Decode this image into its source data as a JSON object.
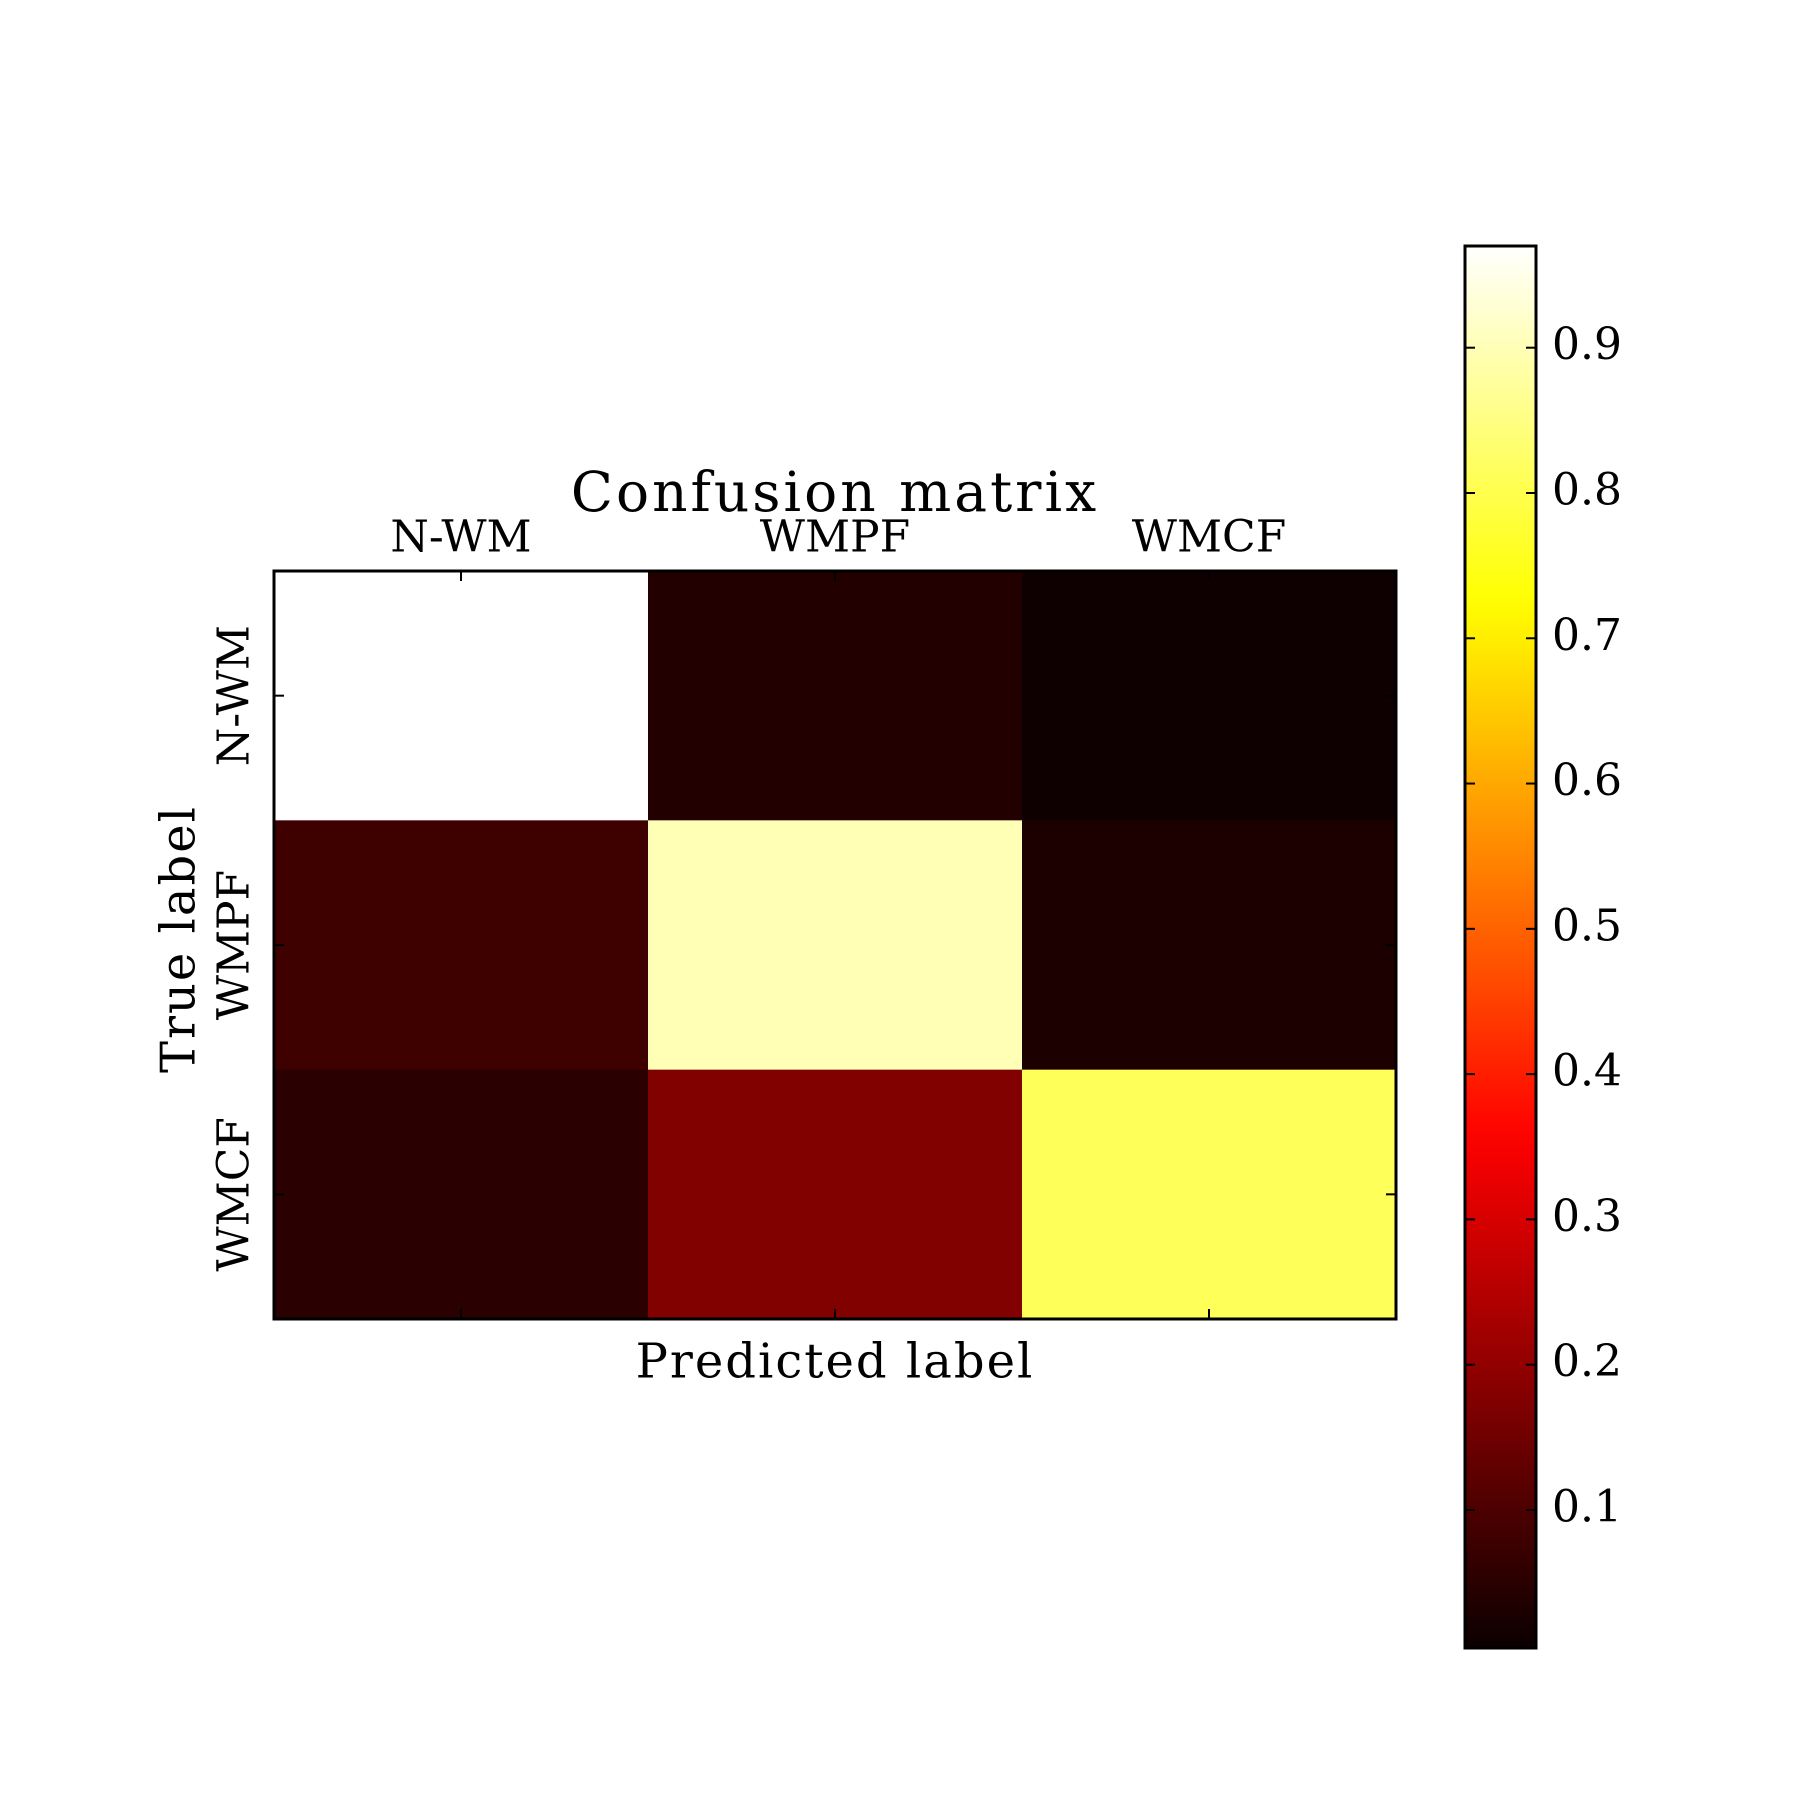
{
  "chart_data": {
    "type": "heatmap",
    "title": "Confusion matrix",
    "x_label": "Predicted label",
    "y_label": "True label",
    "x_categories": [
      "N-WM",
      "WMPF",
      "WMCF"
    ],
    "y_categories": [
      "N-WM",
      "WMPF",
      "WMCF"
    ],
    "values": [
      [
        0.97,
        0.04,
        0.01
      ],
      [
        0.08,
        0.9,
        0.03
      ],
      [
        0.05,
        0.175,
        0.81
      ]
    ],
    "colormap": "hot",
    "clim": [
      0.005,
      0.97
    ],
    "colorbar_ticks": [
      0.1,
      0.2,
      0.3,
      0.4,
      0.5,
      0.6,
      0.7,
      0.8,
      0.9
    ]
  }
}
